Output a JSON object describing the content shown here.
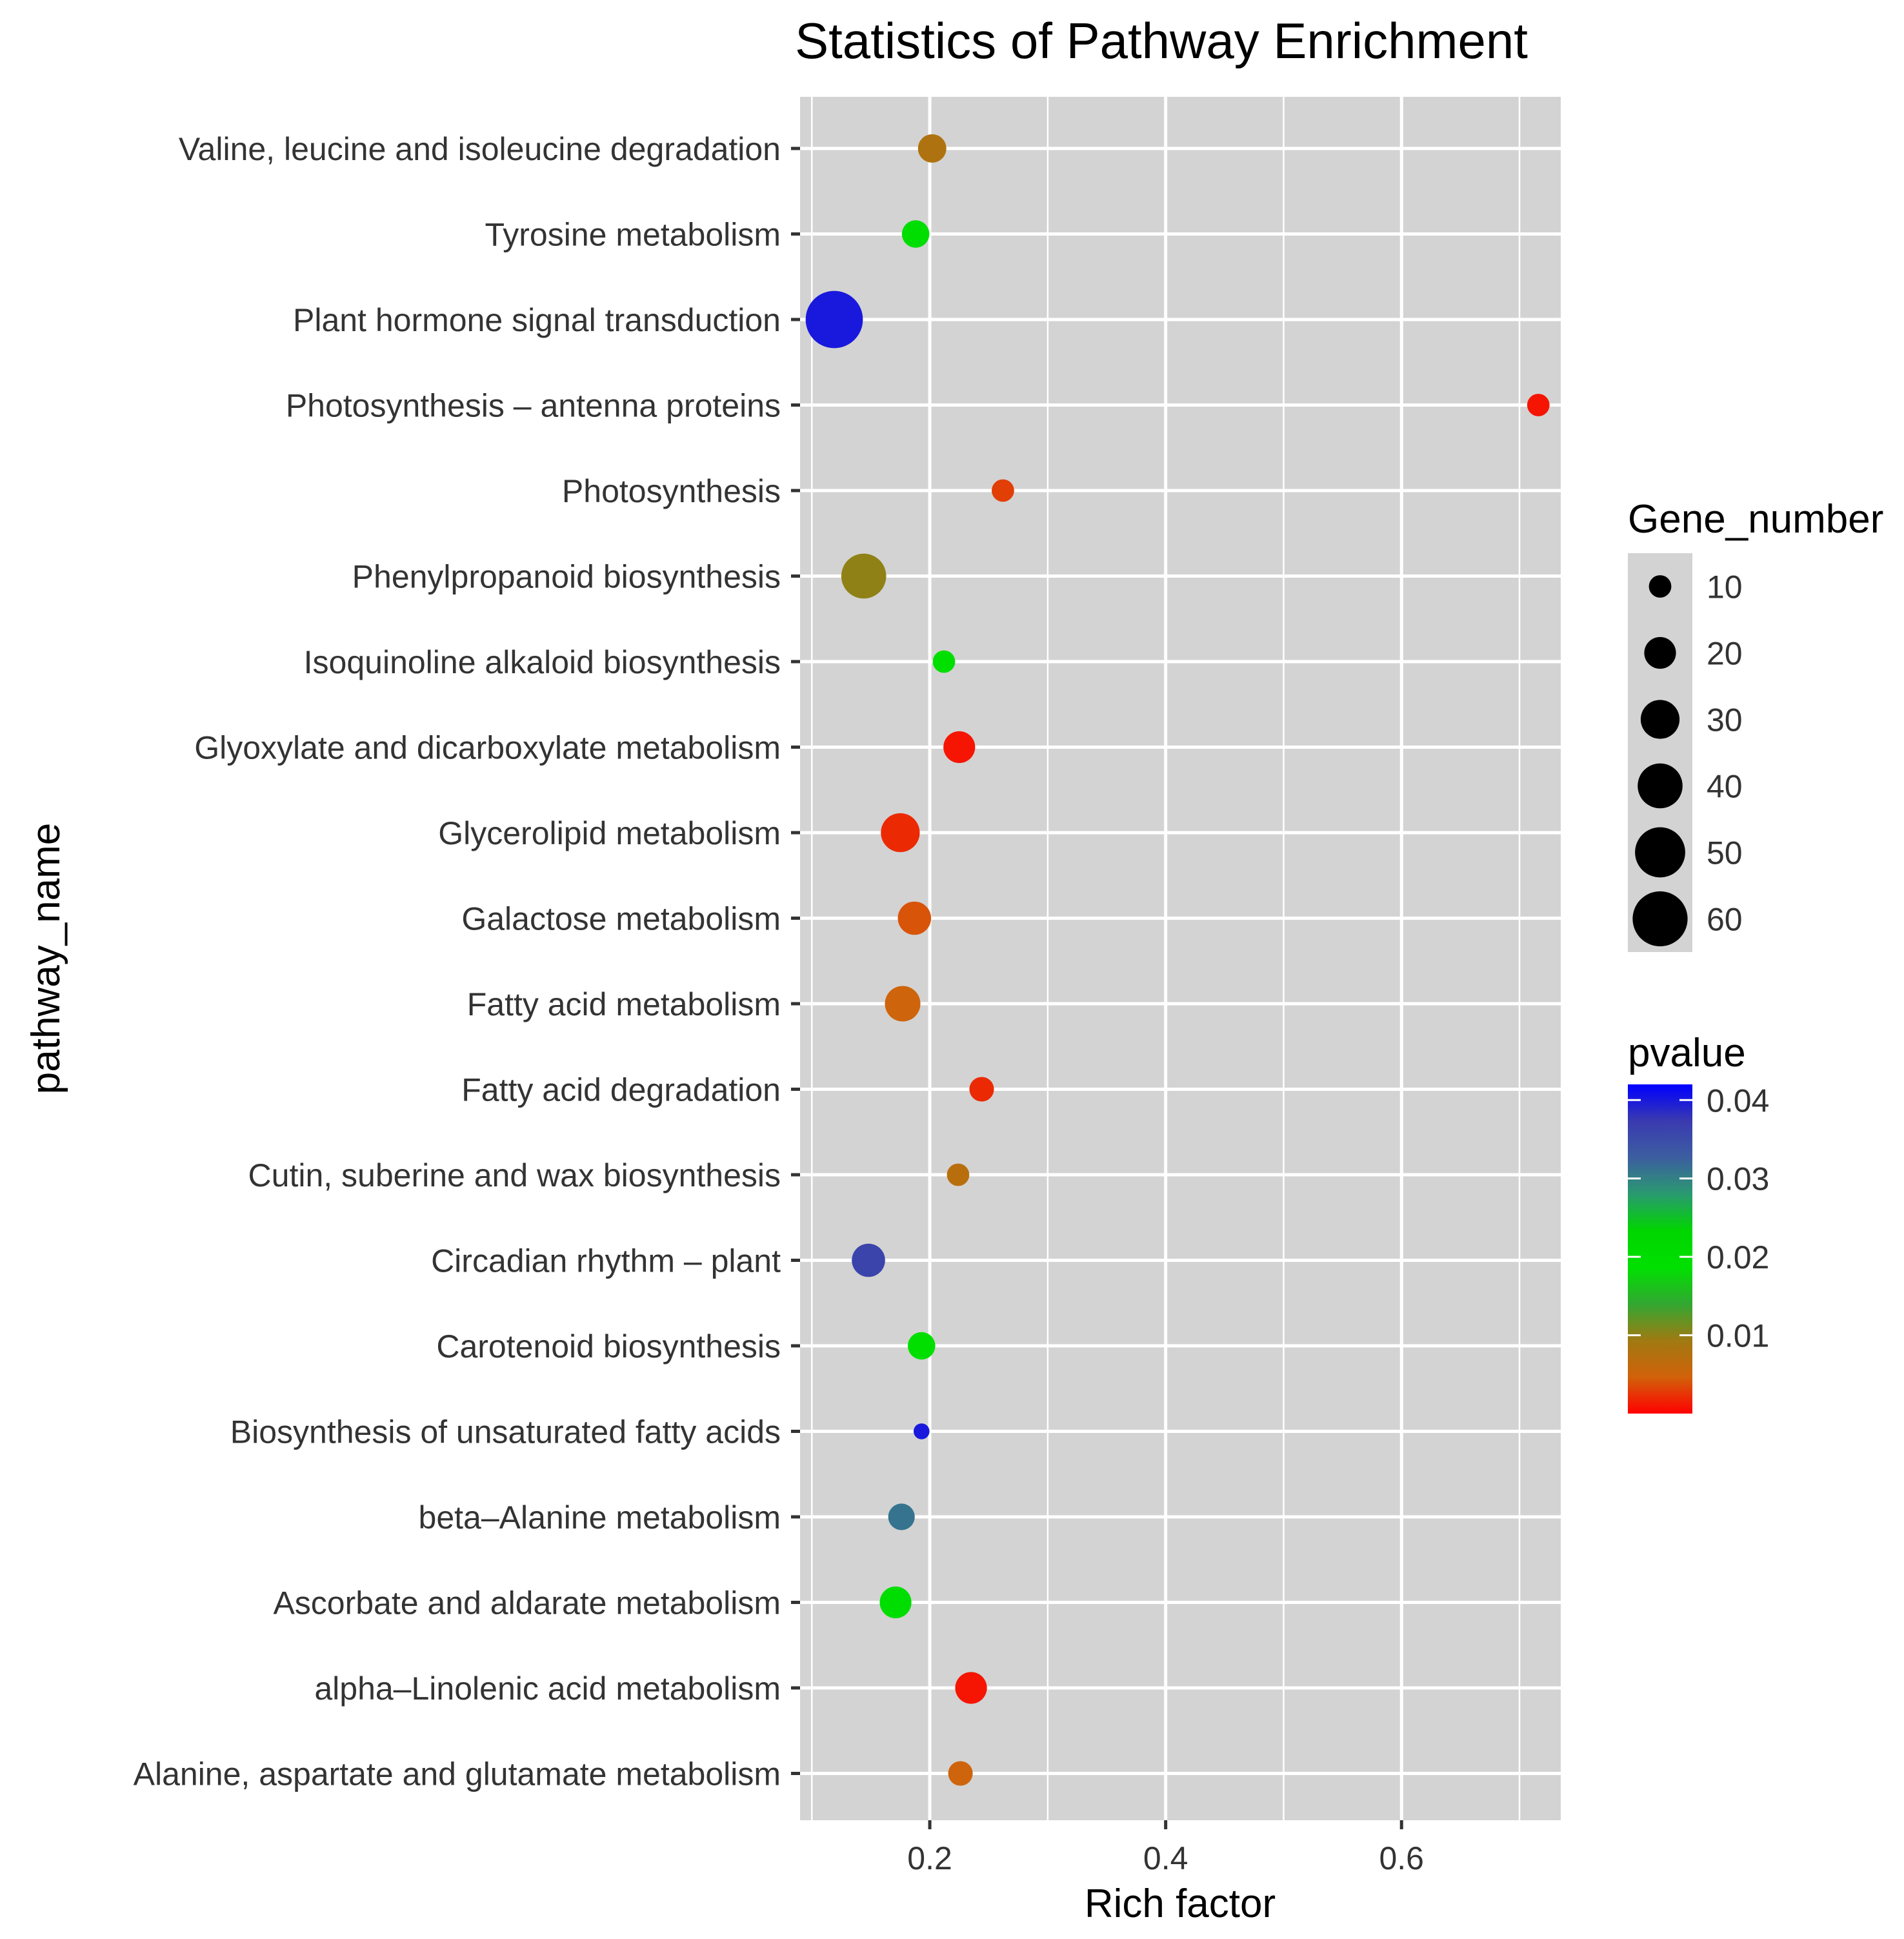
{
  "chart_data": {
    "type": "scatter",
    "title": "Statistics of Pathway Enrichment",
    "xlabel": "Rich factor",
    "ylabel": "pathway_name",
    "xlim": [
      0.09,
      0.735
    ],
    "xticks": [
      0.2,
      0.4,
      0.6
    ],
    "xtick_labels": [
      "0.2",
      "0.4",
      "0.6"
    ],
    "grid": true,
    "points": [
      {
        "pathway": "Valine, leucine and isoleucine degradation",
        "rich_factor": 0.202,
        "gene_number": 16,
        "pvalue": 0.008
      },
      {
        "pathway": "Tyrosine metabolism",
        "rich_factor": 0.188,
        "gene_number": 15,
        "pvalue": 0.02
      },
      {
        "pathway": "Plant hormone signal transduction",
        "rich_factor": 0.119,
        "gene_number": 65,
        "pvalue": 0.04
      },
      {
        "pathway": "Photosynthesis – antenna proteins",
        "rich_factor": 0.716,
        "gene_number": 10,
        "pvalue": 0.001
      },
      {
        "pathway": "Photosynthesis",
        "rich_factor": 0.262,
        "gene_number": 10,
        "pvalue": 0.003
      },
      {
        "pathway": "Phenylpropanoid biosynthesis",
        "rich_factor": 0.144,
        "gene_number": 40,
        "pvalue": 0.01
      },
      {
        "pathway": "Isoquinoline alkaloid biosynthesis",
        "rich_factor": 0.212,
        "gene_number": 10,
        "pvalue": 0.019
      },
      {
        "pathway": "Glyoxylate and dicarboxylate metabolism",
        "rich_factor": 0.225,
        "gene_number": 20,
        "pvalue": 0.001
      },
      {
        "pathway": "Glycerolipid metabolism",
        "rich_factor": 0.175,
        "gene_number": 30,
        "pvalue": 0.002
      },
      {
        "pathway": "Galactose metabolism",
        "rich_factor": 0.187,
        "gene_number": 22,
        "pvalue": 0.004
      },
      {
        "pathway": "Fatty acid metabolism",
        "rich_factor": 0.177,
        "gene_number": 25,
        "pvalue": 0.005
      },
      {
        "pathway": "Fatty acid degradation",
        "rich_factor": 0.244,
        "gene_number": 12,
        "pvalue": 0.002
      },
      {
        "pathway": "Cutin, suberine and wax biosynthesis",
        "rich_factor": 0.224,
        "gene_number": 10,
        "pvalue": 0.007
      },
      {
        "pathway": "Circadian rhythm – plant",
        "rich_factor": 0.148,
        "gene_number": 22,
        "pvalue": 0.036
      },
      {
        "pathway": "Carotenoid biosynthesis",
        "rich_factor": 0.193,
        "gene_number": 15,
        "pvalue": 0.019
      },
      {
        "pathway": "Biosynthesis of unsaturated fatty acids",
        "rich_factor": 0.193,
        "gene_number": 5,
        "pvalue": 0.04
      },
      {
        "pathway": "beta–Alanine metabolism",
        "rich_factor": 0.176,
        "gene_number": 14,
        "pvalue": 0.031
      },
      {
        "pathway": "Ascorbate and aldarate metabolism",
        "rich_factor": 0.171,
        "gene_number": 20,
        "pvalue": 0.02
      },
      {
        "pathway": "alpha–Linolenic acid metabolism",
        "rich_factor": 0.235,
        "gene_number": 20,
        "pvalue": 0.001
      },
      {
        "pathway": "Alanine, aspartate and glutamate metabolism",
        "rich_factor": 0.226,
        "gene_number": 12,
        "pvalue": 0.005
      }
    ],
    "size_legend": {
      "title": "Gene_number",
      "values": [
        10,
        20,
        30,
        40,
        50,
        60
      ],
      "labels": [
        "10",
        "20",
        "30",
        "40",
        "50",
        "60"
      ]
    },
    "color_legend": {
      "title": "pvalue",
      "range": [
        0.0,
        0.042
      ],
      "ticks": [
        0.04,
        0.03,
        0.02,
        0.01
      ],
      "tick_labels": [
        "0.04",
        "0.03",
        "0.02",
        "0.01"
      ]
    }
  },
  "colors": {
    "panel_bg": "#d3d3d3",
    "grid": "#ffffff",
    "text": "#000000",
    "axis_text": "#333333",
    "tick": "#333333",
    "gradient": [
      "#ff0000",
      "#d1620a",
      "#a07a12",
      "#32a832",
      "#00e000",
      "#00d500",
      "#2a9a70",
      "#3c5ea0",
      "#3a3ab0",
      "#0000ff"
    ]
  }
}
